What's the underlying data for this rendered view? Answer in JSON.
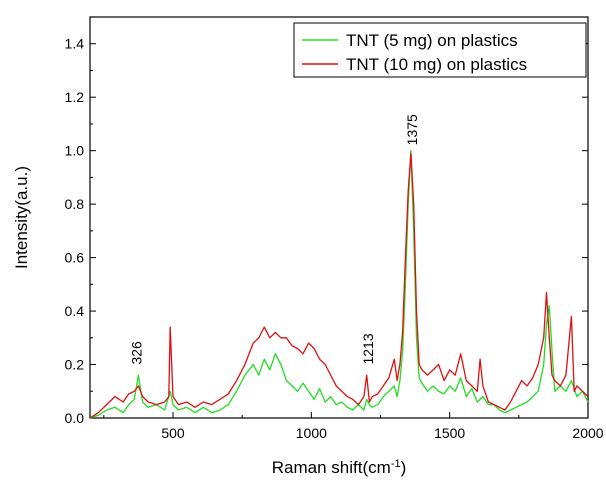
{
  "chart_data": {
    "type": "line",
    "xlabel_main": "Raman shift(cm",
    "xlabel_sup": "-1",
    "xlabel_end": ")",
    "ylabel": "Intensity(a.u.)",
    "xlim": [
      200,
      2000
    ],
    "ylim": [
      0,
      1.5
    ],
    "x_ticks": [
      500,
      1000,
      1500,
      2000
    ],
    "x_tick_labels": [
      "500",
      "1000",
      "1500",
      "2000"
    ],
    "y_ticks": [
      0.0,
      0.2,
      0.4,
      0.6,
      0.8,
      1.0,
      1.2,
      1.4
    ],
    "y_tick_labels": [
      "0.0",
      "0.2",
      "0.4",
      "0.6",
      "0.8",
      "1.0",
      "1.2",
      "1.4"
    ],
    "legend_position": "top-right",
    "annotations": [
      {
        "text": "326",
        "x": 372,
        "y": 0.2,
        "rotate": true
      },
      {
        "text": "1213",
        "x": 1208,
        "y": 0.2,
        "rotate": true
      },
      {
        "text": "1375",
        "x": 1368,
        "y": 1.02,
        "rotate": true
      }
    ],
    "series": [
      {
        "name": "TNT (5 mg) on plastics",
        "color": "#22dd22",
        "x": [
          200,
          230,
          260,
          290,
          320,
          340,
          360,
          375,
          390,
          410,
          440,
          470,
          490,
          500,
          520,
          550,
          580,
          610,
          640,
          670,
          700,
          730,
          760,
          790,
          810,
          830,
          850,
          870,
          890,
          910,
          930,
          950,
          970,
          990,
          1010,
          1030,
          1050,
          1070,
          1090,
          1110,
          1130,
          1150,
          1170,
          1190,
          1200,
          1210,
          1220,
          1240,
          1260,
          1280,
          1300,
          1310,
          1320,
          1330,
          1340,
          1350,
          1360,
          1370,
          1380,
          1390,
          1400,
          1420,
          1440,
          1460,
          1480,
          1500,
          1520,
          1540,
          1560,
          1580,
          1600,
          1620,
          1640,
          1660,
          1680,
          1700,
          1720,
          1740,
          1760,
          1780,
          1800,
          1820,
          1840,
          1850,
          1860,
          1870,
          1880,
          1900,
          1920,
          1940,
          1960,
          1980,
          2000
        ],
        "y": [
          0.0,
          0.01,
          0.03,
          0.04,
          0.02,
          0.05,
          0.07,
          0.16,
          0.06,
          0.04,
          0.05,
          0.03,
          0.1,
          0.05,
          0.03,
          0.04,
          0.02,
          0.04,
          0.02,
          0.03,
          0.05,
          0.1,
          0.16,
          0.2,
          0.16,
          0.22,
          0.18,
          0.24,
          0.2,
          0.14,
          0.12,
          0.1,
          0.13,
          0.1,
          0.07,
          0.11,
          0.06,
          0.08,
          0.05,
          0.06,
          0.04,
          0.03,
          0.05,
          0.03,
          0.07,
          0.05,
          0.04,
          0.05,
          0.08,
          0.1,
          0.12,
          0.08,
          0.14,
          0.25,
          0.5,
          0.8,
          1.0,
          0.7,
          0.3,
          0.15,
          0.13,
          0.1,
          0.12,
          0.1,
          0.09,
          0.12,
          0.1,
          0.15,
          0.08,
          0.11,
          0.06,
          0.08,
          0.05,
          0.05,
          0.03,
          0.02,
          0.03,
          0.04,
          0.05,
          0.06,
          0.08,
          0.1,
          0.2,
          0.35,
          0.42,
          0.25,
          0.1,
          0.12,
          0.1,
          0.14,
          0.08,
          0.1,
          0.06
        ]
      },
      {
        "name": "TNT (10 mg) on plastics",
        "color": "#dd1111",
        "x": [
          200,
          230,
          260,
          290,
          320,
          340,
          360,
          375,
          390,
          410,
          440,
          470,
          485,
          490,
          500,
          520,
          550,
          580,
          610,
          640,
          670,
          700,
          730,
          760,
          790,
          810,
          820,
          830,
          850,
          870,
          890,
          910,
          930,
          950,
          970,
          990,
          1010,
          1030,
          1050,
          1070,
          1090,
          1110,
          1130,
          1150,
          1170,
          1190,
          1200,
          1210,
          1220,
          1240,
          1260,
          1280,
          1300,
          1310,
          1320,
          1330,
          1340,
          1350,
          1360,
          1370,
          1380,
          1390,
          1400,
          1420,
          1440,
          1460,
          1480,
          1500,
          1520,
          1540,
          1560,
          1580,
          1600,
          1610,
          1620,
          1640,
          1660,
          1680,
          1700,
          1720,
          1740,
          1760,
          1780,
          1800,
          1820,
          1840,
          1850,
          1860,
          1870,
          1880,
          1900,
          1920,
          1940,
          1950,
          1960,
          1980,
          2000
        ],
        "y": [
          0.0,
          0.02,
          0.05,
          0.08,
          0.06,
          0.09,
          0.1,
          0.12,
          0.08,
          0.06,
          0.05,
          0.06,
          0.08,
          0.34,
          0.08,
          0.05,
          0.06,
          0.04,
          0.06,
          0.05,
          0.07,
          0.09,
          0.14,
          0.2,
          0.28,
          0.3,
          0.32,
          0.34,
          0.3,
          0.32,
          0.3,
          0.3,
          0.27,
          0.26,
          0.24,
          0.28,
          0.26,
          0.22,
          0.2,
          0.16,
          0.12,
          0.1,
          0.08,
          0.07,
          0.05,
          0.08,
          0.16,
          0.06,
          0.08,
          0.09,
          0.12,
          0.15,
          0.22,
          0.14,
          0.2,
          0.32,
          0.6,
          0.85,
          0.99,
          0.8,
          0.4,
          0.2,
          0.18,
          0.16,
          0.18,
          0.2,
          0.14,
          0.18,
          0.16,
          0.24,
          0.14,
          0.12,
          0.1,
          0.22,
          0.12,
          0.06,
          0.05,
          0.04,
          0.03,
          0.06,
          0.1,
          0.14,
          0.12,
          0.15,
          0.2,
          0.3,
          0.47,
          0.3,
          0.16,
          0.14,
          0.12,
          0.16,
          0.38,
          0.1,
          0.12,
          0.1,
          0.08
        ]
      }
    ]
  }
}
